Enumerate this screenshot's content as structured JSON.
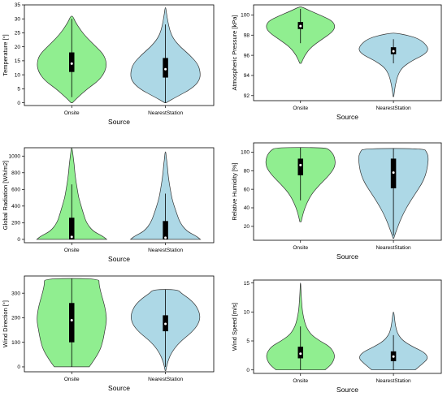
{
  "chart_data": [
    {
      "type": "violin",
      "xlabel": "Source",
      "ylabel": "Temperature [°]",
      "ylim": [
        -1,
        35
      ],
      "yticks": [
        0,
        5,
        10,
        15,
        20,
        25,
        30,
        35
      ],
      "categories": [
        "Onsite",
        "NearestStation"
      ],
      "colors": [
        "#90EE90",
        "#ADD8E6"
      ],
      "violins": [
        {
          "min": 0,
          "max": 31,
          "q1": 11,
          "median": 14,
          "q3": 18,
          "whisker_low": 2,
          "whisker_high": 30,
          "profile": [
            [
              0,
              0.02
            ],
            [
              2,
              0.18
            ],
            [
              5,
              0.45
            ],
            [
              8,
              0.78
            ],
            [
              11,
              0.95
            ],
            [
              14,
              1.0
            ],
            [
              17,
              0.93
            ],
            [
              20,
              0.7
            ],
            [
              23,
              0.45
            ],
            [
              26,
              0.25
            ],
            [
              29,
              0.1
            ],
            [
              31,
              0.03
            ]
          ]
        },
        {
          "min": 0,
          "max": 34,
          "q1": 9,
          "median": 12,
          "q3": 16,
          "whisker_low": 0,
          "whisker_high": 28,
          "profile": [
            [
              0,
              0.02
            ],
            [
              2,
              0.3
            ],
            [
              5,
              0.75
            ],
            [
              8,
              0.98
            ],
            [
              11,
              1.0
            ],
            [
              14,
              0.92
            ],
            [
              17,
              0.7
            ],
            [
              20,
              0.42
            ],
            [
              23,
              0.22
            ],
            [
              26,
              0.12
            ],
            [
              29,
              0.07
            ],
            [
              32,
              0.03
            ],
            [
              34,
              0.01
            ]
          ]
        }
      ]
    },
    {
      "type": "violin",
      "xlabel": "Source",
      "ylabel": "Atmospheric Pressure [kPa]",
      "ylim": [
        91.5,
        101
      ],
      "yticks": [
        92,
        94,
        96,
        98,
        100
      ],
      "categories": [
        "Onsite",
        "NearestStation"
      ],
      "colors": [
        "#90EE90",
        "#ADD8E6"
      ],
      "violins": [
        {
          "min": 95.2,
          "max": 100.8,
          "q1": 98.6,
          "median": 98.9,
          "q3": 99.3,
          "whisker_low": 97.2,
          "whisker_high": 100.6,
          "profile": [
            [
              95.2,
              0.02
            ],
            [
              96.0,
              0.12
            ],
            [
              96.8,
              0.3
            ],
            [
              97.5,
              0.58
            ],
            [
              98.2,
              0.88
            ],
            [
              98.8,
              1.0
            ],
            [
              99.4,
              0.92
            ],
            [
              99.9,
              0.62
            ],
            [
              100.4,
              0.28
            ],
            [
              100.8,
              0.04
            ]
          ]
        },
        {
          "min": 91.9,
          "max": 98.2,
          "q1": 96.1,
          "median": 96.4,
          "q3": 96.8,
          "whisker_low": 95.2,
          "whisker_high": 97.6,
          "profile": [
            [
              91.9,
              0.01
            ],
            [
              93.0,
              0.05
            ],
            [
              94.0,
              0.12
            ],
            [
              94.8,
              0.25
            ],
            [
              95.5,
              0.55
            ],
            [
              96.0,
              0.85
            ],
            [
              96.5,
              1.0
            ],
            [
              97.0,
              0.95
            ],
            [
              97.6,
              0.75
            ],
            [
              98.0,
              0.4
            ],
            [
              98.2,
              0.05
            ]
          ]
        }
      ]
    },
    {
      "type": "violin",
      "xlabel": "Source",
      "ylabel": "Global Radiation [Wh/m2]",
      "ylim": [
        -40,
        1100
      ],
      "yticks": [
        0,
        200,
        400,
        600,
        800,
        1000
      ],
      "categories": [
        "Onsite",
        "NearestStation"
      ],
      "colors": [
        "#90EE90",
        "#ADD8E6"
      ],
      "violins": [
        {
          "min": 0,
          "max": 1100,
          "q1": 0,
          "median": 30,
          "q3": 260,
          "whisker_low": 0,
          "whisker_high": 660,
          "profile": [
            [
              0,
              1.0
            ],
            [
              40,
              0.88
            ],
            [
              100,
              0.6
            ],
            [
              200,
              0.42
            ],
            [
              300,
              0.34
            ],
            [
              400,
              0.27
            ],
            [
              500,
              0.2
            ],
            [
              600,
              0.16
            ],
            [
              700,
              0.12
            ],
            [
              800,
              0.09
            ],
            [
              900,
              0.07
            ],
            [
              1000,
              0.04
            ],
            [
              1100,
              0.01
            ]
          ]
        },
        {
          "min": 0,
          "max": 1050,
          "q1": 0,
          "median": 20,
          "q3": 220,
          "whisker_low": 0,
          "whisker_high": 550,
          "profile": [
            [
              0,
              1.0
            ],
            [
              40,
              0.88
            ],
            [
              100,
              0.6
            ],
            [
              200,
              0.42
            ],
            [
              300,
              0.33
            ],
            [
              400,
              0.25
            ],
            [
              500,
              0.18
            ],
            [
              600,
              0.14
            ],
            [
              700,
              0.1
            ],
            [
              800,
              0.07
            ],
            [
              900,
              0.05
            ],
            [
              1000,
              0.02
            ],
            [
              1050,
              0.01
            ]
          ]
        }
      ]
    },
    {
      "type": "violin",
      "xlabel": "Source",
      "ylabel": "Relative Humidity [%]",
      "ylim": [
        5,
        110
      ],
      "yticks": [
        20,
        40,
        60,
        80,
        100
      ],
      "categories": [
        "Onsite",
        "NearestStation"
      ],
      "colors": [
        "#90EE90",
        "#ADD8E6"
      ],
      "violins": [
        {
          "min": 25,
          "max": 105,
          "q1": 75,
          "median": 86,
          "q3": 93,
          "whisker_low": 48,
          "whisker_high": 105,
          "profile": [
            [
              25,
              0.02
            ],
            [
              35,
              0.08
            ],
            [
              45,
              0.18
            ],
            [
              55,
              0.32
            ],
            [
              65,
              0.55
            ],
            [
              75,
              0.82
            ],
            [
              85,
              1.0
            ],
            [
              95,
              0.98
            ],
            [
              102,
              0.85
            ],
            [
              105,
              0.7
            ]
          ]
        },
        {
          "min": 7,
          "max": 104,
          "q1": 61,
          "median": 78,
          "q3": 93,
          "whisker_low": 10,
          "whisker_high": 104,
          "profile": [
            [
              7,
              0.01
            ],
            [
              15,
              0.08
            ],
            [
              25,
              0.18
            ],
            [
              35,
              0.3
            ],
            [
              45,
              0.45
            ],
            [
              55,
              0.62
            ],
            [
              65,
              0.8
            ],
            [
              75,
              0.92
            ],
            [
              85,
              0.98
            ],
            [
              95,
              1.0
            ],
            [
              100,
              0.95
            ],
            [
              104,
              0.88
            ]
          ]
        }
      ]
    },
    {
      "type": "violin",
      "xlabel": "Source",
      "ylabel": "Wind Direction [°]",
      "ylim": [
        -20,
        370
      ],
      "yticks": [
        0,
        100,
        200,
        300
      ],
      "categories": [
        "Onsite",
        "NearestStation"
      ],
      "colors": [
        "#90EE90",
        "#ADD8E6"
      ],
      "violins": [
        {
          "min": 0,
          "max": 360,
          "q1": 100,
          "median": 190,
          "q3": 260,
          "whisker_low": 0,
          "whisker_high": 360,
          "profile": [
            [
              0,
              0.5
            ],
            [
              30,
              0.65
            ],
            [
              70,
              0.82
            ],
            [
              110,
              0.9
            ],
            [
              150,
              0.95
            ],
            [
              190,
              1.0
            ],
            [
              230,
              0.97
            ],
            [
              270,
              0.9
            ],
            [
              310,
              0.82
            ],
            [
              340,
              0.78
            ],
            [
              360,
              0.78
            ]
          ]
        },
        {
          "min": -15,
          "max": 315,
          "q1": 145,
          "median": 175,
          "q3": 210,
          "whisker_low": 0,
          "whisker_high": 315,
          "profile": [
            [
              -15,
              0.01
            ],
            [
              20,
              0.06
            ],
            [
              60,
              0.18
            ],
            [
              100,
              0.4
            ],
            [
              140,
              0.75
            ],
            [
              175,
              0.95
            ],
            [
              210,
              1.0
            ],
            [
              250,
              0.88
            ],
            [
              280,
              0.66
            ],
            [
              300,
              0.45
            ],
            [
              315,
              0.35
            ]
          ]
        }
      ]
    },
    {
      "type": "violin",
      "xlabel": "Source",
      "ylabel": "Wind Speed [m/s]",
      "ylim": [
        -0.6,
        15.5
      ],
      "yticks": [
        0,
        5,
        10,
        15
      ],
      "categories": [
        "Onsite",
        "NearestStation"
      ],
      "colors": [
        "#90EE90",
        "#ADD8E6"
      ],
      "violins": [
        {
          "min": 0,
          "max": 15,
          "q1": 2,
          "median": 2.8,
          "q3": 4,
          "whisker_low": 0,
          "whisker_high": 7.5,
          "profile": [
            [
              0,
              0.7
            ],
            [
              1,
              0.9
            ],
            [
              2.5,
              1.0
            ],
            [
              4,
              0.85
            ],
            [
              5,
              0.55
            ],
            [
              6,
              0.32
            ],
            [
              7,
              0.2
            ],
            [
              8,
              0.13
            ],
            [
              9,
              0.09
            ],
            [
              10,
              0.06
            ],
            [
              11,
              0.04
            ],
            [
              12,
              0.03
            ],
            [
              13,
              0.02
            ],
            [
              14,
              0.01
            ],
            [
              15,
              0.005
            ]
          ]
        },
        {
          "min": 0,
          "max": 10,
          "q1": 1.5,
          "median": 2.3,
          "q3": 3.2,
          "whisker_low": 0,
          "whisker_high": 6,
          "profile": [
            [
              0,
              0.62
            ],
            [
              1,
              0.82
            ],
            [
              2,
              1.0
            ],
            [
              3,
              0.9
            ],
            [
              4,
              0.55
            ],
            [
              5,
              0.28
            ],
            [
              6,
              0.14
            ],
            [
              7,
              0.08
            ],
            [
              8,
              0.05
            ],
            [
              9,
              0.03
            ],
            [
              10,
              0.01
            ]
          ]
        }
      ]
    }
  ]
}
